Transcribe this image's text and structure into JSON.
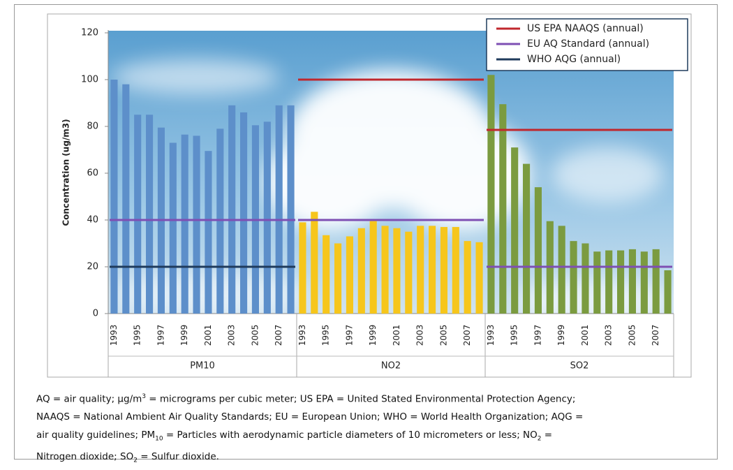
{
  "chart_data": {
    "type": "bar",
    "y_label": "Concentration (ug/m3)",
    "ylim": [
      0,
      120
    ],
    "yticks": [
      0,
      20,
      40,
      60,
      80,
      100,
      120
    ],
    "categories": [
      "1993",
      null,
      "1995",
      null,
      "1997",
      null,
      "1999",
      null,
      "2001",
      null,
      "2003",
      null,
      "2005",
      null,
      "2007",
      null
    ],
    "groups": [
      {
        "name": "PM10",
        "color": "#5d8fca",
        "values": [
          100,
          98,
          85,
          85,
          79.5,
          73,
          76.5,
          76,
          69.5,
          79,
          89,
          86,
          80.5,
          82,
          89,
          89
        ]
      },
      {
        "name": "NO2",
        "color": "#f6c61c",
        "values": [
          39,
          43.5,
          33.5,
          30,
          33,
          36.5,
          39.5,
          37.5,
          36.5,
          35,
          37.5,
          37.5,
          37,
          37,
          31,
          30.5
        ]
      },
      {
        "name": "SO2",
        "color": "#7b9b40",
        "values": [
          102,
          89.5,
          71,
          64,
          54,
          39.5,
          37.5,
          31,
          30,
          26.5,
          27,
          27,
          27.5,
          26.5,
          27.5,
          18.5
        ]
      }
    ],
    "reference_lines": [
      {
        "name": "US EPA NAAQS (annual)",
        "color": "#c0272d",
        "values": [
          null,
          100,
          78.5
        ]
      },
      {
        "name": "EU AQ Standard (annual)",
        "color": "#7e4fb3",
        "values": [
          40,
          40,
          20
        ]
      },
      {
        "name": "WHO AQG (annual)",
        "color": "#1f3b5c",
        "values": [
          20,
          null,
          null
        ]
      }
    ],
    "legend": "upper right"
  },
  "footnote": [
    [
      "AQ = air quality; μg/m",
      {
        "sup": "3"
      },
      " = micrograms per cubic meter; US EPA = United Stated Environmental Protection Agency;"
    ],
    [
      "NAAQS = National Ambient Air Quality Standards; EU = European Union; WHO = World Health Organization; AQG ="
    ],
    [
      "air quality guidelines; PM",
      {
        "sub": "10"
      },
      " = Particles with aerodynamic particle diameters of 10 micrometers or less; NO",
      {
        "sub": "2"
      },
      " ="
    ],
    [
      "Nitrogen dioxide; SO",
      {
        "sub": "2"
      },
      " = Sulfur dioxide."
    ]
  ]
}
